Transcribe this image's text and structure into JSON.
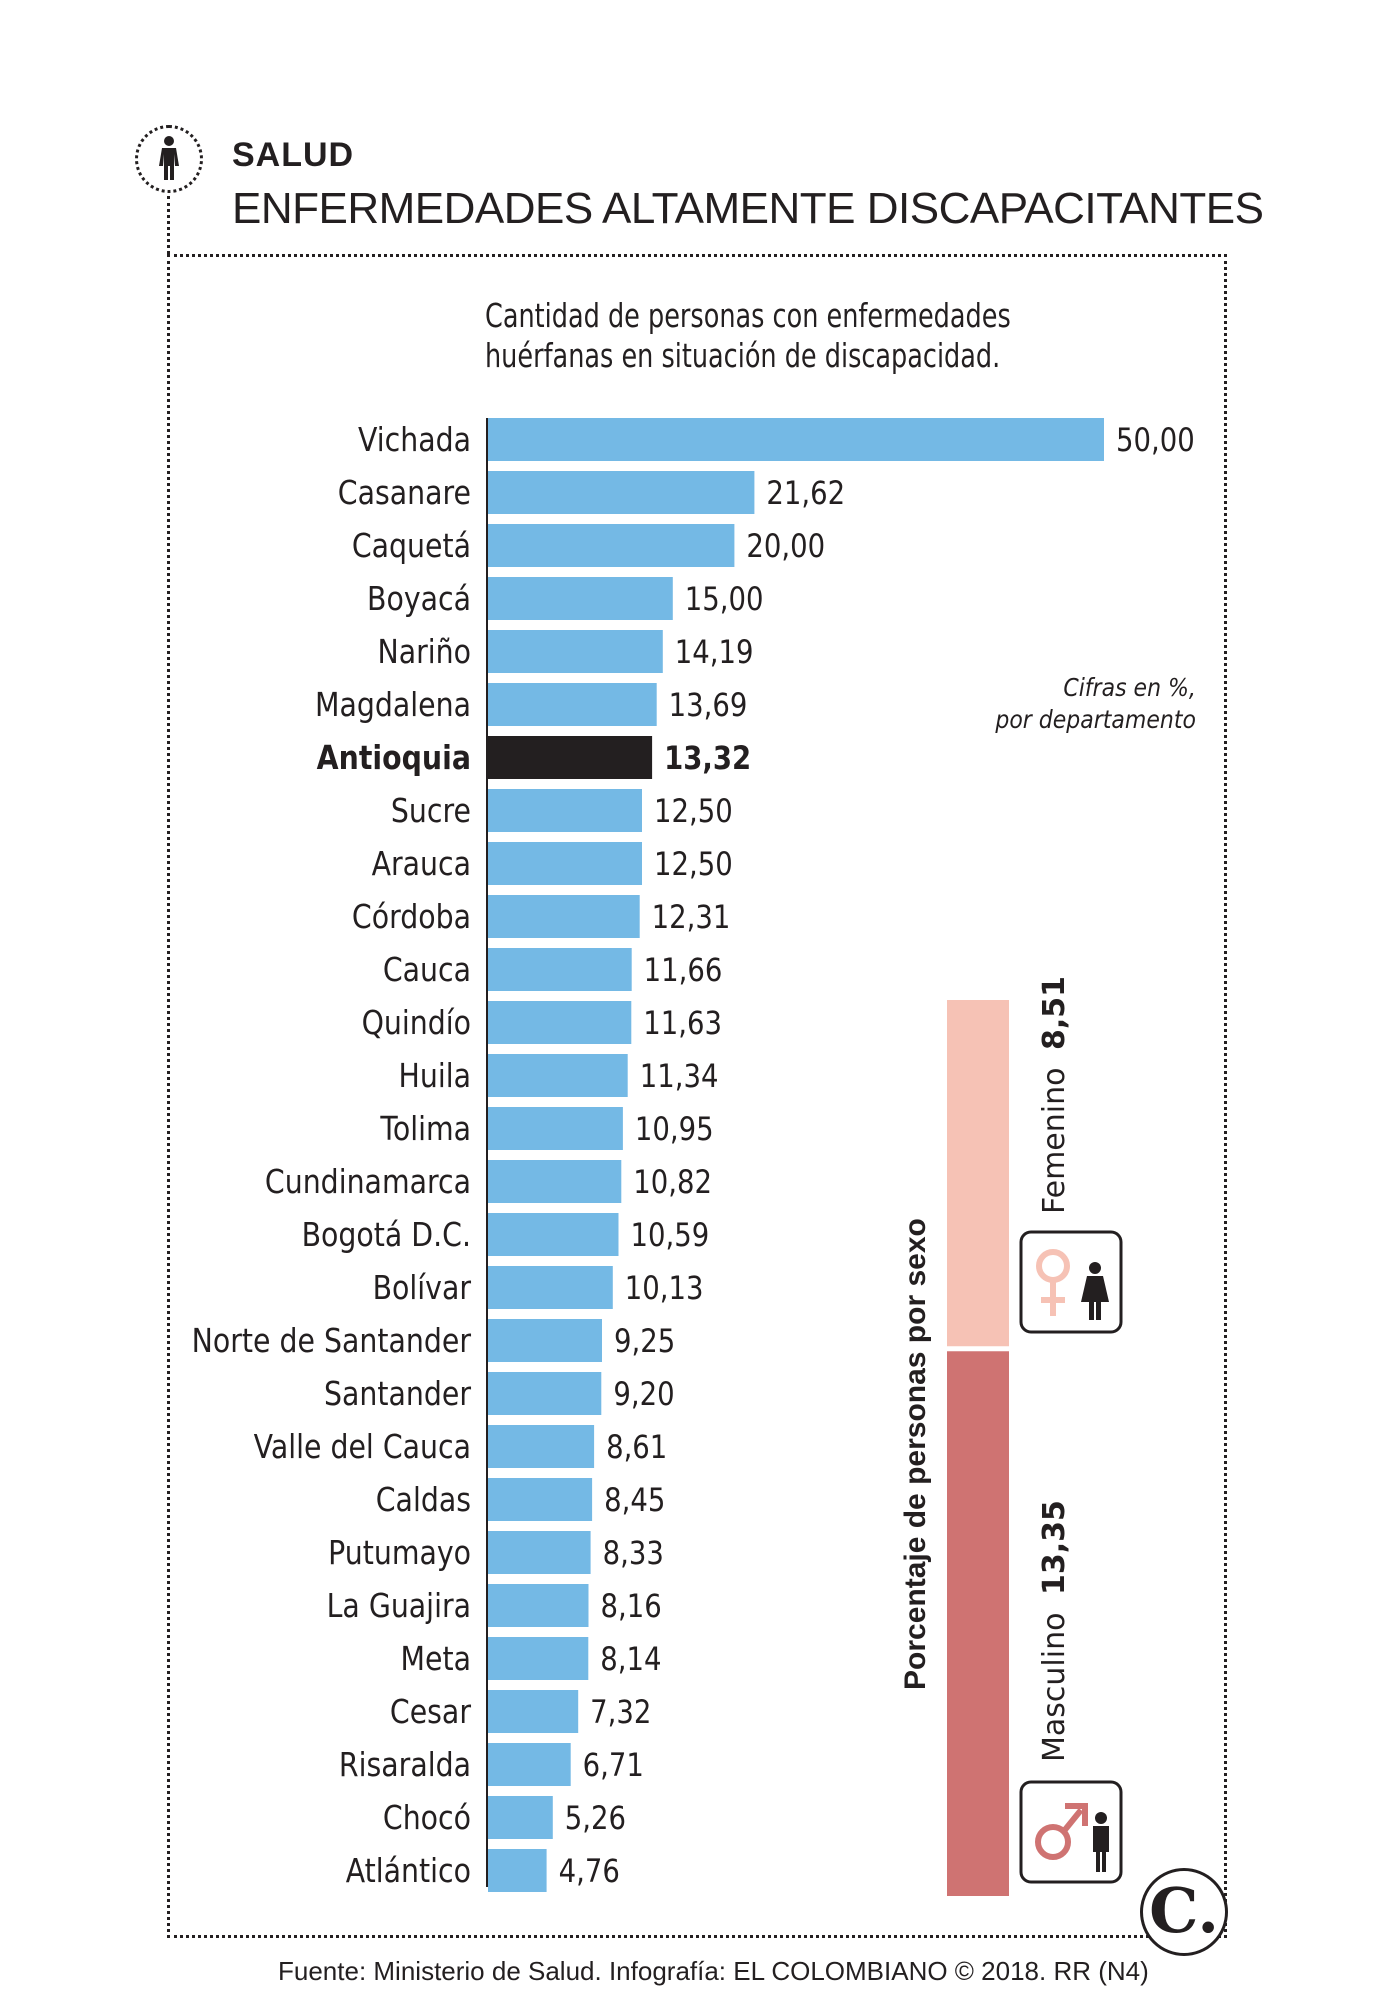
{
  "header": {
    "section": "SALUD",
    "title": "ENFERMEDADES ALTAMENTE DISCAPACITANTES"
  },
  "subtitle_lines": [
    "Cantidad de personas con enfermedades",
    "huérfanas en situación de discapacidad."
  ],
  "note_lines": [
    "Cifras en %,",
    "por departamento"
  ],
  "colors": {
    "bar": "#74b9e5",
    "highlight": "#231f20",
    "female": "#f6c2b5",
    "male": "#cf7372"
  },
  "chart_data": {
    "type": "bar",
    "orientation": "horizontal",
    "highlight": "Antioquia",
    "categories": [
      "Vichada",
      "Casanare",
      "Caquetá",
      "Boyacá",
      "Nariño",
      "Magdalena",
      "Antioquia",
      "Sucre",
      "Arauca",
      "Córdoba",
      "Cauca",
      "Quindío",
      "Huila",
      "Tolima",
      "Cundinamarca",
      "Bogotá D.C.",
      "Bolívar",
      "Norte de Santander",
      "Santander",
      "Valle del Cauca",
      "Caldas",
      "Putumayo",
      "La Guajira",
      "Meta",
      "Cesar",
      "Risaralda",
      "Chocó",
      "Atlántico"
    ],
    "values": [
      50.0,
      21.62,
      20.0,
      15.0,
      14.19,
      13.69,
      13.32,
      12.5,
      12.5,
      12.31,
      11.66,
      11.63,
      11.34,
      10.95,
      10.82,
      10.59,
      10.13,
      9.25,
      9.2,
      8.61,
      8.45,
      8.33,
      8.16,
      8.14,
      7.32,
      6.71,
      5.26,
      4.76
    ],
    "value_labels": [
      "50,00",
      "21,62",
      "20,00",
      "15,00",
      "14,19",
      "13,69",
      "13,32",
      "12,50",
      "12,50",
      "12,31",
      "11,66",
      "11,63",
      "11,34",
      "10,95",
      "10,82",
      "10,59",
      "10,13",
      "9,25",
      "9,20",
      "8,61",
      "8,45",
      "8,33",
      "8,16",
      "8,14",
      "7,32",
      "6,71",
      "5,26",
      "4,76"
    ],
    "xlim": [
      0,
      50
    ]
  },
  "sex_panel": {
    "title": "Porcentaje de personas por sexo",
    "female": {
      "label": "Femenino",
      "value": 8.51,
      "value_label": "8,51",
      "icon": "female-symbol-icon"
    },
    "male": {
      "label": "Masculino",
      "value": 13.35,
      "value_label": "13,35",
      "icon": "male-symbol-icon"
    }
  },
  "source": "Fuente: Ministerio de Salud. Infografía: EL COLOMBIANO © 2018. RR (N4)",
  "logo_text": "C."
}
